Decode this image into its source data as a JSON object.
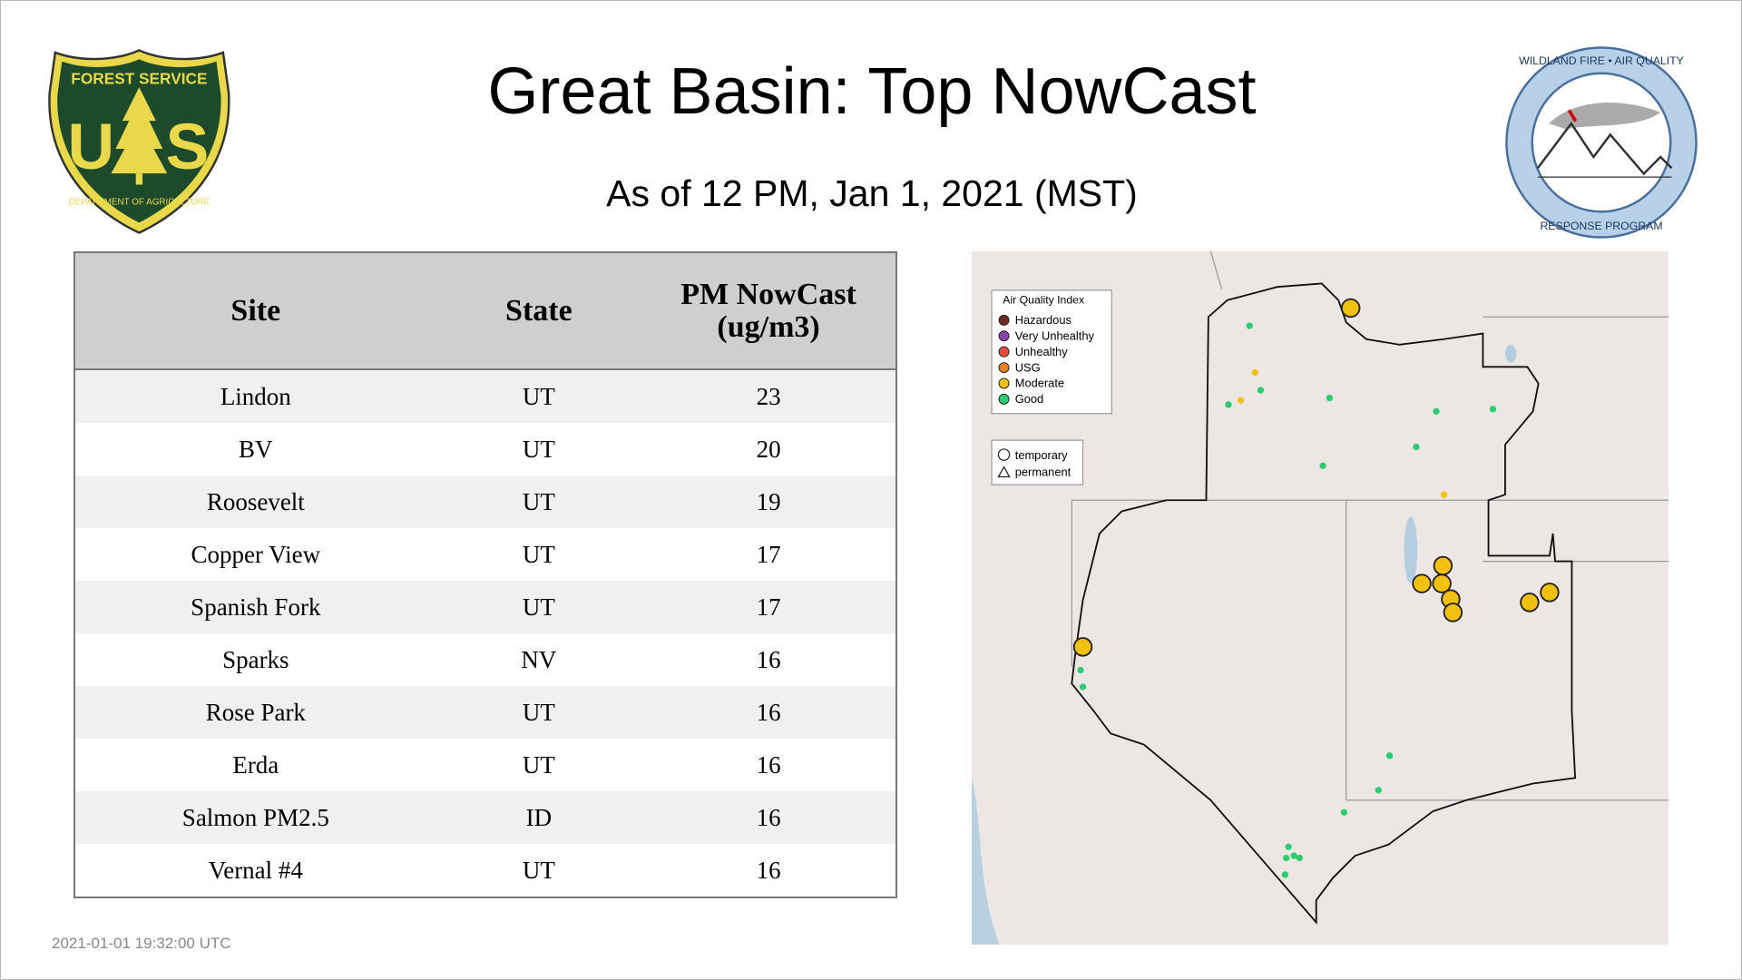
{
  "header": {
    "title": "Great Basin: Top NowCast",
    "subtitle": "As of 12 PM, Jan  1, 2021 (MST)"
  },
  "logos": {
    "usfs_top": "FOREST SERVICE",
    "usfs_letter_left": "U",
    "usfs_letter_right": "S",
    "usfs_bottom": "DEPARTMENT OF AGRICULTURE",
    "wfaq_top": "WILDLAND FIRE • AIR QUALITY",
    "wfaq_bottom": "RESPONSE PROGRAM"
  },
  "table": {
    "columns": [
      "Site",
      "State",
      "PM NowCast (ug/m3)"
    ],
    "rows": [
      [
        "Lindon",
        "UT",
        23
      ],
      [
        "BV",
        "UT",
        20
      ],
      [
        "Roosevelt",
        "UT",
        19
      ],
      [
        "Copper View",
        "UT",
        17
      ],
      [
        "Spanish Fork",
        "UT",
        17
      ],
      [
        "Sparks",
        "NV",
        16
      ],
      [
        "Rose Park",
        "UT",
        16
      ],
      [
        "Erda",
        "UT",
        16
      ],
      [
        "Salmon PM2.5",
        "ID",
        16
      ],
      [
        "Vernal #4",
        "UT",
        16
      ]
    ]
  },
  "map": {
    "legend": {
      "title": "Air Quality Index",
      "items": [
        "Hazardous",
        "Very Unhealthy",
        "Unhealthy",
        "USG",
        "Moderate",
        "Good"
      ]
    },
    "shapes": [
      "temporary",
      "permanent"
    ]
  },
  "footer": {
    "timestamp": "2021-01-01 19:32:00 UTC"
  }
}
